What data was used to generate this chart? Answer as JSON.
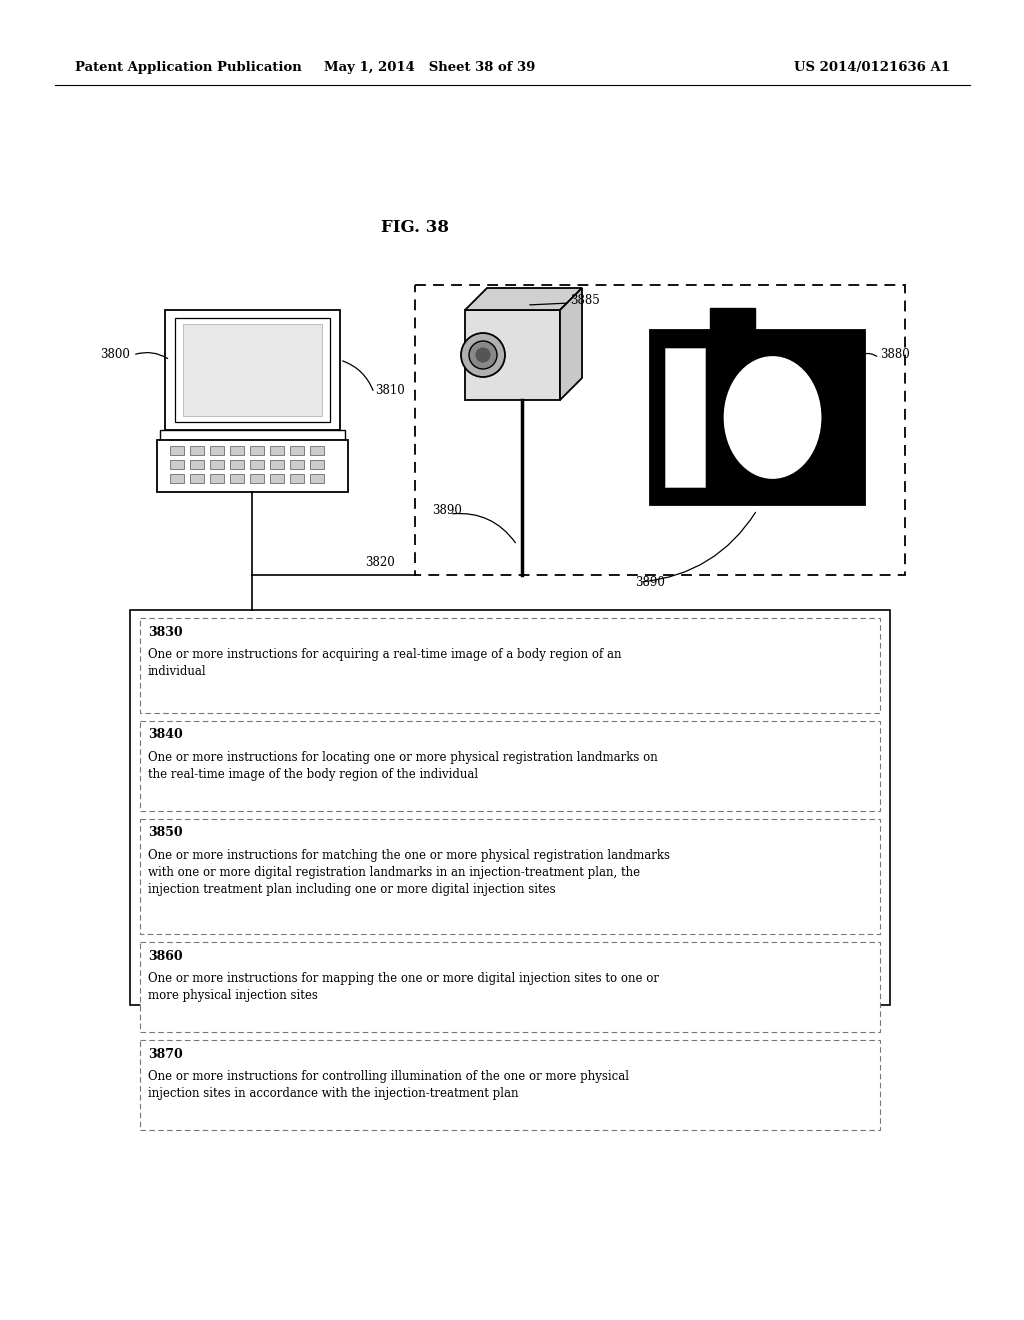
{
  "header_left": "Patent Application Publication",
  "header_mid": "May 1, 2014   Sheet 38 of 39",
  "header_right": "US 2014/0121636 A1",
  "fig_label": "FIG. 38",
  "bg_color": "#ffffff",
  "text_color": "#000000",
  "boxes": [
    {
      "label": "3830",
      "text": "One or more instructions for acquiring a real-time image of a body region of an\nindividual"
    },
    {
      "label": "3840",
      "text": "One or more instructions for locating one or more physical registration landmarks on\nthe real-time image of the body region of the individual"
    },
    {
      "label": "3850",
      "text": "One or more instructions for matching the one or more physical registration landmarks\nwith one or more digital registration landmarks in an injection-treatment plan, the\ninjection treatment plan including one or more digital injection sites"
    },
    {
      "label": "3860",
      "text": "One or more instructions for mapping the one or more digital injection sites to one or\nmore physical injection sites"
    },
    {
      "label": "3870",
      "text": "One or more instructions for controlling illumination of the one or more physical\ninjection sites in accordance with the injection-treatment plan"
    }
  ]
}
